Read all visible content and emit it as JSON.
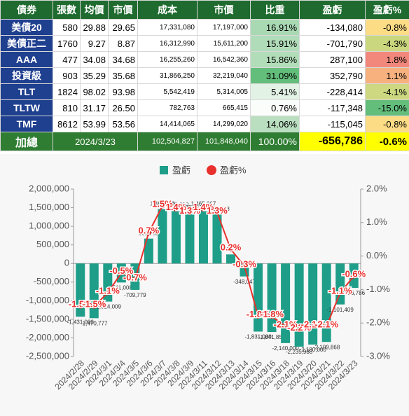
{
  "table": {
    "header": [
      "債券",
      "張數",
      "均價",
      "市價",
      "成本",
      "市價",
      "比重",
      "盈虧",
      "盈虧%"
    ],
    "rows": [
      [
        "美債20",
        "580",
        "29.88",
        "29.65",
        "17,331,080",
        "17,197,000",
        "16.91%",
        "-134,080",
        "-0.8%"
      ],
      [
        "美債正二",
        "1760",
        "9.27",
        "8.87",
        "16,312,990",
        "15,611,200",
        "15.91%",
        "-701,790",
        "-4.3%"
      ],
      [
        "AAA",
        "477",
        "34.08",
        "34.68",
        "16,255,260",
        "16,542,360",
        "15.86%",
        "287,100",
        "1.8%"
      ],
      [
        "投資級",
        "903",
        "35.29",
        "35.68",
        "31,866,250",
        "32,219,040",
        "31.09%",
        "352,790",
        "1.1%"
      ],
      [
        "TLT",
        "1824",
        "98.02",
        "93.98",
        "5,542,419",
        "5,314,005",
        "5.41%",
        "-228,414",
        "-4.1%"
      ],
      [
        "TLTW",
        "810",
        "31.17",
        "26.50",
        "782,763",
        "665,415",
        "0.76%",
        "-117,348",
        "-15.0%"
      ],
      [
        "TMF",
        "8612",
        "53.99",
        "53.56",
        "14,414,065",
        "14,299,020",
        "14.06%",
        "-115,045",
        "-0.8%"
      ]
    ],
    "total": [
      "加總",
      "2024/3/23",
      "102,504,827",
      "101,848,040",
      "100.00%",
      "-656,786",
      "-0.6%"
    ]
  },
  "chart_data": {
    "type": "combo",
    "categories": [
      "2024/2/28",
      "2024/2/29",
      "2024/3/1",
      "2024/3/4",
      "2024/3/5",
      "2024/3/6",
      "2024/3/7",
      "2024/3/8",
      "2024/3/9",
      "2024/3/11",
      "2024/3/12",
      "2024/3/13",
      "2024/3/14",
      "2024/3/15",
      "2024/3/16",
      "2024/3/18",
      "2024/3/19",
      "2024/3/20",
      "2024/3/21",
      "2024/3/22",
      "2024/3/23"
    ],
    "series": [
      {
        "name": "盈虧",
        "color": "#1e9e89",
        "type": "bar",
        "values": [
          -1431000,
          -1470777,
          -1024009,
          -511008,
          -709779,
          668780,
          1461000,
          1438000,
          1363000,
          1465667,
          1325523,
          243200,
          -348047,
          -1831000,
          -1841852,
          -2140000,
          -2235988,
          -2180000,
          -2109868,
          -1101409,
          -656786
        ],
        "value_labels": [
          "-1,431,000",
          "-1,470,777",
          "-1,024,009",
          "-511,008",
          "-709,779",
          "668,780",
          "1,461,000",
          "1,438,000",
          "1,363,000",
          "1,465,667",
          "1,325,523",
          "243,200",
          "-348,047",
          "-1,831,000",
          "-1,841,852",
          "-2,140,000",
          "-2,235,988",
          "-2,180,000",
          "-2,109,868",
          "-1,101,409",
          "-656,786"
        ]
      },
      {
        "name": "盈虧%",
        "color": "#e8302c",
        "type": "line",
        "axis": "y2",
        "values": [
          -1.5,
          -1.5,
          -1.1,
          -0.5,
          -0.7,
          0.7,
          1.5,
          1.4,
          1.3,
          1.4,
          1.3,
          0.2,
          -0.3,
          -1.8,
          -1.8,
          -2.1,
          -2.2,
          -2.1,
          -2.1,
          -1.1,
          -0.6
        ],
        "value_labels": [
          "-1.5%",
          "-1.5%",
          "-1.1%",
          "-0.5%",
          "-0.7%",
          "0.7%",
          "1.5%",
          "1.4%",
          "1.3%",
          "1.4%",
          "1.3%",
          "0.2%",
          "-0.3%",
          "-1.8%",
          "-1.8%",
          "-2.1%",
          "-2.2%",
          "-2.1%",
          "-2.1%",
          "-1.1%",
          "-0.6%"
        ]
      }
    ],
    "ylim": [
      -2500000,
      2000000
    ],
    "yticks": [
      {
        "value": -2500000,
        "label": "-2,500,000"
      },
      {
        "value": -2000000,
        "label": "-2,000,000"
      },
      {
        "value": -1500000,
        "label": "-1,500,000"
      },
      {
        "value": -1000000,
        "label": "-1,000,000"
      },
      {
        "value": -500000,
        "label": "-500,000"
      },
      0,
      {
        "value": 500000,
        "label": "500,000"
      },
      {
        "value": 1000000,
        "label": "1,000,000"
      },
      {
        "value": 1500000,
        "label": "1,500,000"
      },
      {
        "value": 2000000,
        "label": "2,000,000"
      }
    ],
    "y2lim": [
      -3,
      2
    ],
    "y2ticks": [
      {
        "value": -3,
        "label": "-3.0%"
      },
      {
        "value": -2,
        "label": "-2.0%"
      },
      {
        "value": -1,
        "label": "-1.0%"
      },
      {
        "value": 0,
        "label": "0.0%"
      },
      {
        "value": 1,
        "label": "1.0%"
      },
      {
        "value": 2,
        "label": "2.0%"
      }
    ],
    "legend": "top"
  }
}
